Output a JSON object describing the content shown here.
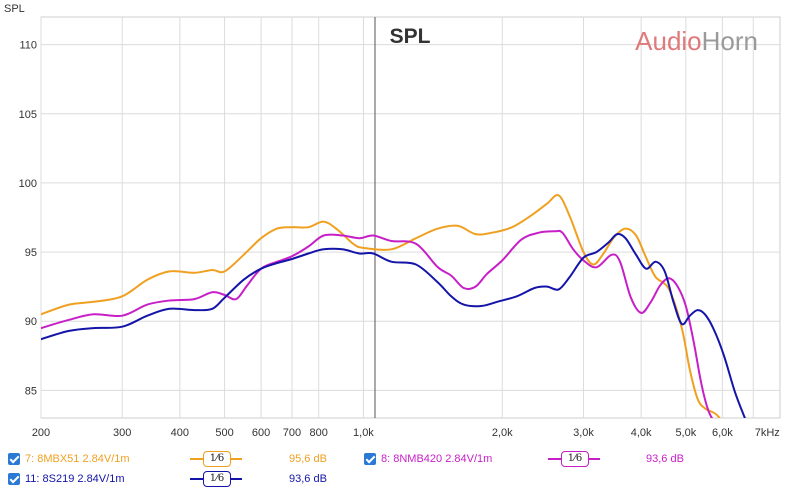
{
  "chart_data": {
    "type": "line",
    "title": "SPL",
    "ylabel": "SPL",
    "watermark": "AudioHorn",
    "x_scale": "log",
    "xlim": [
      200,
      8000
    ],
    "ylim": [
      83,
      112
    ],
    "grid": true,
    "x_ticks": [
      {
        "v": 200,
        "label": "200"
      },
      {
        "v": 300,
        "label": "300"
      },
      {
        "v": 400,
        "label": "400"
      },
      {
        "v": 500,
        "label": "500"
      },
      {
        "v": 600,
        "label": "600"
      },
      {
        "v": 700,
        "label": "700"
      },
      {
        "v": 800,
        "label": "800"
      },
      {
        "v": 1000,
        "label": "1,0k"
      },
      {
        "v": 2000,
        "label": "2,0k"
      },
      {
        "v": 3000,
        "label": "3,0k"
      },
      {
        "v": 4000,
        "label": "4,0k"
      },
      {
        "v": 5000,
        "label": "5,0k"
      },
      {
        "v": 6000,
        "label": "6,0k"
      },
      {
        "v": 7000,
        "label": "7kHz"
      }
    ],
    "y_ticks": [
      {
        "v": 85,
        "label": "85"
      },
      {
        "v": 90,
        "label": "90"
      },
      {
        "v": 95,
        "label": "95"
      },
      {
        "v": 100,
        "label": "100"
      },
      {
        "v": 105,
        "label": "105"
      },
      {
        "v": 110,
        "label": "110"
      }
    ],
    "series": [
      {
        "name": "7: 8MBX51 2.84V/1m",
        "color": "#f0a020",
        "points": [
          [
            200,
            90.5
          ],
          [
            230,
            91.2
          ],
          [
            260,
            91.4
          ],
          [
            300,
            91.8
          ],
          [
            340,
            93.0
          ],
          [
            380,
            93.6
          ],
          [
            430,
            93.5
          ],
          [
            470,
            93.7
          ],
          [
            500,
            93.6
          ],
          [
            550,
            94.8
          ],
          [
            600,
            96.0
          ],
          [
            650,
            96.7
          ],
          [
            700,
            96.8
          ],
          [
            760,
            96.8
          ],
          [
            820,
            97.2
          ],
          [
            880,
            96.6
          ],
          [
            950,
            95.6
          ],
          [
            1000,
            95.3
          ],
          [
            1150,
            95.2
          ],
          [
            1300,
            96.0
          ],
          [
            1450,
            96.7
          ],
          [
            1600,
            96.9
          ],
          [
            1750,
            96.3
          ],
          [
            1900,
            96.4
          ],
          [
            2100,
            96.8
          ],
          [
            2300,
            97.6
          ],
          [
            2500,
            98.5
          ],
          [
            2650,
            99.1
          ],
          [
            2800,
            97.6
          ],
          [
            3000,
            95.0
          ],
          [
            3150,
            94.1
          ],
          [
            3300,
            94.8
          ],
          [
            3500,
            96.1
          ],
          [
            3700,
            96.7
          ],
          [
            3900,
            96.2
          ],
          [
            4100,
            94.6
          ],
          [
            4300,
            93.2
          ],
          [
            4600,
            92.3
          ],
          [
            4900,
            89.5
          ],
          [
            5100,
            86.5
          ],
          [
            5300,
            84.4
          ],
          [
            5500,
            83.7
          ],
          [
            5800,
            83.3
          ],
          [
            6050,
            82.6
          ]
        ]
      },
      {
        "name": "8: 8NMB420 2.84V/1m",
        "color": "#c71fc7",
        "points": [
          [
            200,
            89.5
          ],
          [
            230,
            90.1
          ],
          [
            260,
            90.5
          ],
          [
            300,
            90.4
          ],
          [
            340,
            91.2
          ],
          [
            380,
            91.5
          ],
          [
            430,
            91.6
          ],
          [
            470,
            92.1
          ],
          [
            500,
            91.9
          ],
          [
            530,
            91.6
          ],
          [
            560,
            92.6
          ],
          [
            600,
            93.8
          ],
          [
            650,
            94.3
          ],
          [
            700,
            94.7
          ],
          [
            760,
            95.4
          ],
          [
            820,
            96.2
          ],
          [
            900,
            96.2
          ],
          [
            980,
            96.0
          ],
          [
            1050,
            96.2
          ],
          [
            1150,
            95.8
          ],
          [
            1300,
            95.6
          ],
          [
            1450,
            93.9
          ],
          [
            1550,
            93.3
          ],
          [
            1650,
            92.4
          ],
          [
            1750,
            92.5
          ],
          [
            1850,
            93.4
          ],
          [
            2000,
            94.4
          ],
          [
            2200,
            95.9
          ],
          [
            2400,
            96.4
          ],
          [
            2600,
            96.5
          ],
          [
            2700,
            96.4
          ],
          [
            2850,
            95.2
          ],
          [
            3000,
            94.4
          ],
          [
            3200,
            93.9
          ],
          [
            3450,
            94.8
          ],
          [
            3600,
            94.3
          ],
          [
            3800,
            91.7
          ],
          [
            4000,
            90.6
          ],
          [
            4200,
            91.4
          ],
          [
            4400,
            92.6
          ],
          [
            4600,
            93.1
          ],
          [
            4800,
            92.5
          ],
          [
            5000,
            91.1
          ],
          [
            5200,
            88.5
          ],
          [
            5400,
            85.5
          ],
          [
            5600,
            83.5
          ],
          [
            5800,
            82.6
          ]
        ]
      },
      {
        "name": "11: 8S219 2.84V/1m",
        "color": "#1414a8",
        "points": [
          [
            200,
            88.7
          ],
          [
            230,
            89.3
          ],
          [
            260,
            89.5
          ],
          [
            300,
            89.6
          ],
          [
            340,
            90.4
          ],
          [
            380,
            90.9
          ],
          [
            430,
            90.8
          ],
          [
            470,
            90.9
          ],
          [
            500,
            91.7
          ],
          [
            550,
            93.0
          ],
          [
            600,
            93.8
          ],
          [
            650,
            94.2
          ],
          [
            700,
            94.5
          ],
          [
            760,
            94.9
          ],
          [
            820,
            95.2
          ],
          [
            900,
            95.2
          ],
          [
            980,
            94.9
          ],
          [
            1050,
            94.9
          ],
          [
            1150,
            94.3
          ],
          [
            1300,
            94.1
          ],
          [
            1450,
            92.8
          ],
          [
            1550,
            91.8
          ],
          [
            1650,
            91.2
          ],
          [
            1800,
            91.1
          ],
          [
            1950,
            91.4
          ],
          [
            2150,
            91.8
          ],
          [
            2350,
            92.4
          ],
          [
            2500,
            92.5
          ],
          [
            2650,
            92.3
          ],
          [
            2800,
            93.2
          ],
          [
            3000,
            94.6
          ],
          [
            3200,
            95.0
          ],
          [
            3400,
            95.7
          ],
          [
            3550,
            96.3
          ],
          [
            3700,
            96.0
          ],
          [
            3900,
            94.8
          ],
          [
            4100,
            93.8
          ],
          [
            4300,
            94.3
          ],
          [
            4500,
            93.6
          ],
          [
            4700,
            91.4
          ],
          [
            4900,
            89.8
          ],
          [
            5100,
            90.4
          ],
          [
            5300,
            90.8
          ],
          [
            5500,
            90.5
          ],
          [
            5750,
            89.4
          ],
          [
            6050,
            87.5
          ],
          [
            6400,
            84.8
          ],
          [
            6750,
            82.8
          ]
        ]
      }
    ]
  },
  "legend": [
    {
      "checked": true,
      "label": "7: 8MBX51 2.84V/1m",
      "smoothing": "1⁄6",
      "value": "95,6 dB",
      "color": "#f0a020"
    },
    {
      "checked": true,
      "label": "8: 8NMB420 2.84V/1m",
      "smoothing": "1⁄6",
      "value": "93,6 dB",
      "color": "#c71fc7"
    },
    {
      "checked": true,
      "label": "11: 8S219 2.84V/1m",
      "smoothing": "1⁄6",
      "value": "93,6 dB",
      "color": "#1414a8"
    }
  ]
}
